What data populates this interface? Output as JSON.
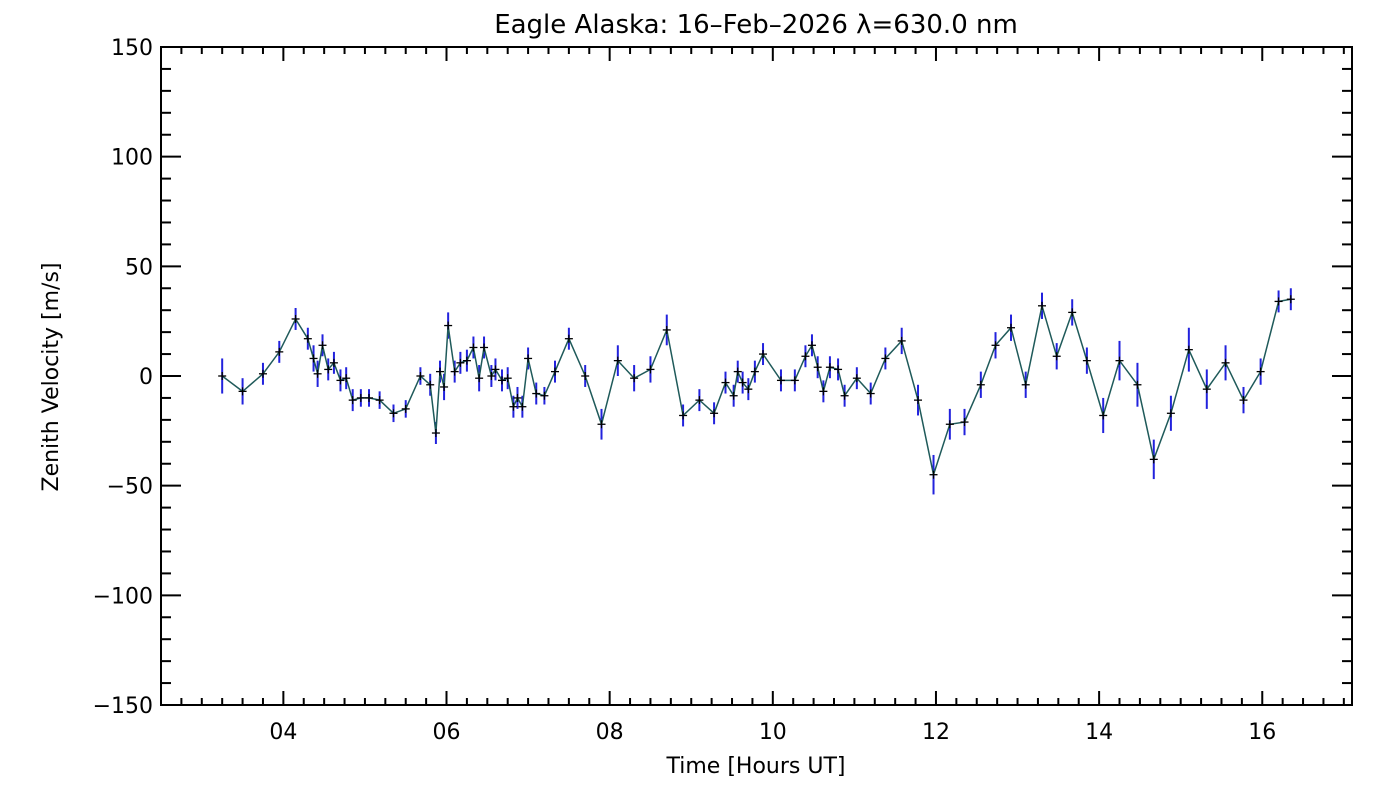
{
  "chart_data": {
    "type": "line",
    "title": "Eagle Alaska: 16–Feb–2026 λ=630.0 nm",
    "xlabel": "Time [Hours UT]",
    "ylabel": "Zenith Velocity [m/s]",
    "xlim": [
      2.5,
      17.1
    ],
    "ylim": [
      -150,
      150
    ],
    "x_tick_values": [
      4,
      6,
      8,
      10,
      12,
      14,
      16
    ],
    "x_tick_labels": [
      "04",
      "06",
      "08",
      "10",
      "12",
      "14",
      "16"
    ],
    "y_tick_values": [
      150,
      100,
      50,
      0,
      -50,
      -100,
      -150
    ],
    "y_tick_labels": [
      "150",
      "100",
      "50",
      "0",
      "−50",
      "−100",
      "−150"
    ],
    "grid": false,
    "colors": {
      "line": "#1f5a5a",
      "error_bar": "#2222dd",
      "marker": "#000000",
      "axis": "#000000"
    },
    "series": [
      {
        "name": "Zenith Velocity",
        "x": [
          3.25,
          3.5,
          3.75,
          3.95,
          4.15,
          4.3,
          4.37,
          4.42,
          4.48,
          4.55,
          4.62,
          4.7,
          4.77,
          4.85,
          4.95,
          5.05,
          5.18,
          5.35,
          5.5,
          5.68,
          5.8,
          5.87,
          5.92,
          5.97,
          6.02,
          6.1,
          6.17,
          6.25,
          6.33,
          6.4,
          6.46,
          6.55,
          6.6,
          6.68,
          6.75,
          6.82,
          6.87,
          6.93,
          7.0,
          7.1,
          7.2,
          7.33,
          7.5,
          7.7,
          7.9,
          8.1,
          8.3,
          8.5,
          8.7,
          8.9,
          9.1,
          9.28,
          9.42,
          9.52,
          9.57,
          9.63,
          9.7,
          9.78,
          9.88,
          10.1,
          10.27,
          10.4,
          10.48,
          10.55,
          10.62,
          10.7,
          10.8,
          10.88,
          11.03,
          11.2,
          11.38,
          11.58,
          11.78,
          11.97,
          12.17,
          12.35,
          12.55,
          12.73,
          12.92,
          13.1,
          13.3,
          13.48,
          13.67,
          13.85,
          14.05,
          14.25,
          14.47,
          14.67,
          14.88,
          15.1,
          15.32,
          15.55,
          15.77,
          15.98,
          16.2,
          16.35
        ],
        "y": [
          0,
          -7,
          1,
          11,
          26,
          17,
          8,
          1,
          14,
          3,
          6,
          -2,
          -1,
          -11,
          -10,
          -10,
          -11,
          -17,
          -15,
          0,
          -4,
          -26,
          2,
          -5,
          23,
          2,
          6,
          7,
          13,
          -1,
          13,
          0,
          3,
          -2,
          -1,
          -14,
          -10,
          -14,
          8,
          -8,
          -9,
          2,
          17,
          0,
          -22,
          7,
          -1,
          3,
          21,
          -18,
          -11,
          -17,
          -3,
          -9,
          2,
          -3,
          -6,
          2,
          10,
          -2,
          -2,
          9,
          14,
          4,
          -7,
          4,
          3,
          -9,
          -1,
          -8,
          8,
          16,
          -11,
          -45,
          -22,
          -21,
          -4,
          14,
          22,
          -4,
          32,
          9,
          29,
          7,
          -18,
          7,
          -4,
          -38,
          -17,
          12,
          -6,
          6,
          -11,
          2,
          34,
          35
        ],
        "err": [
          8,
          6,
          5,
          5,
          5,
          5,
          6,
          6,
          5,
          5,
          5,
          5,
          5,
          5,
          4,
          4,
          4,
          4,
          4,
          4,
          5,
          5,
          5,
          6,
          6,
          5,
          5,
          5,
          5,
          6,
          5,
          5,
          5,
          5,
          5,
          5,
          5,
          5,
          5,
          5,
          4,
          5,
          5,
          5,
          7,
          7,
          6,
          6,
          7,
          5,
          5,
          5,
          5,
          5,
          5,
          5,
          5,
          5,
          5,
          5,
          5,
          5,
          5,
          5,
          5,
          5,
          5,
          5,
          5,
          5,
          5,
          6,
          7,
          9,
          7,
          6,
          6,
          6,
          6,
          6,
          6,
          6,
          6,
          6,
          8,
          9,
          10,
          9,
          8,
          10,
          9,
          8,
          6,
          6,
          5,
          5
        ]
      }
    ]
  }
}
